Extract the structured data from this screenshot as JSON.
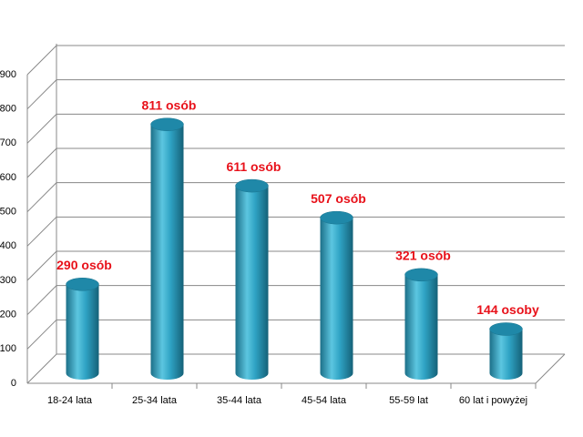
{
  "chart_data": {
    "type": "bar",
    "style": "3d-cylinder",
    "categories": [
      "18-24 lata",
      "25-34 lata",
      "35-44 lata",
      "45-54 lata",
      "55-59 lat",
      "60 lat i powyżej"
    ],
    "values": [
      290,
      811,
      611,
      507,
      321,
      144
    ],
    "value_labels": [
      "290 osób",
      "811 osób",
      "611 osób",
      "507 osób",
      "321 osób",
      "144 osoby"
    ],
    "color": "#2b9fc0",
    "label_color": "#e8111a",
    "ylim": [
      0,
      900
    ],
    "yticks": [
      0,
      100,
      200,
      300,
      400,
      500,
      600,
      700,
      800,
      900
    ],
    "grid": true
  }
}
